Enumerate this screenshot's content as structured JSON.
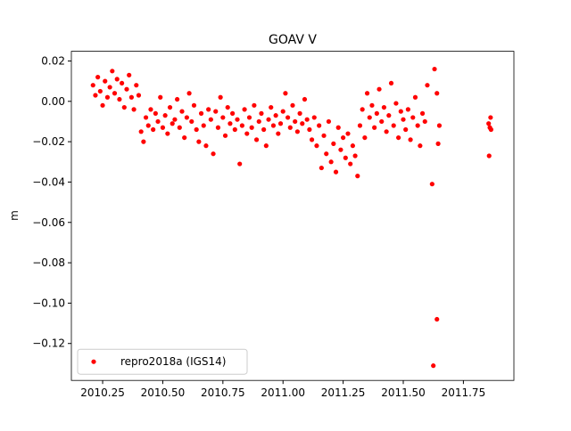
{
  "chart_data": {
    "type": "scatter",
    "title": "GOAV V",
    "y_label": "m",
    "xlim": [
      2010.12,
      2011.96
    ],
    "ylim": [
      -0.1383,
      0.0248
    ],
    "xticks": [
      {
        "value": 2010.25,
        "label": "2010.25"
      },
      {
        "value": 2010.5,
        "label": "2010.50"
      },
      {
        "value": 2010.75,
        "label": "2010.75"
      },
      {
        "value": 2011.0,
        "label": "2011.00"
      },
      {
        "value": 2011.25,
        "label": "2011.25"
      },
      {
        "value": 2011.5,
        "label": "2011.50"
      },
      {
        "value": 2011.75,
        "label": "2011.75"
      }
    ],
    "yticks": [
      {
        "value": 0.02,
        "label": "0.02"
      },
      {
        "value": 0.0,
        "label": "0.00"
      },
      {
        "value": -0.02,
        "label": "−0.02"
      },
      {
        "value": -0.04,
        "label": "−0.04"
      },
      {
        "value": -0.06,
        "label": "−0.06"
      },
      {
        "value": -0.08,
        "label": "−0.08"
      },
      {
        "value": -0.1,
        "label": "−0.10"
      },
      {
        "value": -0.12,
        "label": "−0.12"
      }
    ],
    "legend": "lower left",
    "series": [
      {
        "name": "repro2018a (IGS14)",
        "color": "#ff0000",
        "x": [
          2010.21,
          2010.22,
          2010.23,
          2010.24,
          2010.25,
          2010.26,
          2010.27,
          2010.28,
          2010.29,
          2010.3,
          2010.31,
          2010.32,
          2010.33,
          2010.34,
          2010.35,
          2010.36,
          2010.37,
          2010.38,
          2010.39,
          2010.4,
          2010.41,
          2010.42,
          2010.43,
          2010.44,
          2010.45,
          2010.46,
          2010.47,
          2010.48,
          2010.49,
          2010.5,
          2010.51,
          2010.52,
          2010.53,
          2010.54,
          2010.55,
          2010.56,
          2010.57,
          2010.58,
          2010.59,
          2010.6,
          2010.61,
          2010.62,
          2010.63,
          2010.64,
          2010.65,
          2010.66,
          2010.67,
          2010.68,
          2010.69,
          2010.7,
          2010.71,
          2010.72,
          2010.73,
          2010.74,
          2010.75,
          2010.76,
          2010.77,
          2010.78,
          2010.79,
          2010.8,
          2010.81,
          2010.82,
          2010.83,
          2010.84,
          2010.85,
          2010.86,
          2010.87,
          2010.88,
          2010.89,
          2010.9,
          2010.91,
          2010.92,
          2010.93,
          2010.94,
          2010.95,
          2010.96,
          2010.97,
          2010.98,
          2010.99,
          2011.0,
          2011.01,
          2011.02,
          2011.03,
          2011.04,
          2011.05,
          2011.06,
          2011.07,
          2011.08,
          2011.09,
          2011.1,
          2011.11,
          2011.12,
          2011.13,
          2011.14,
          2011.15,
          2011.16,
          2011.17,
          2011.18,
          2011.19,
          2011.2,
          2011.21,
          2011.22,
          2011.23,
          2011.24,
          2011.25,
          2011.26,
          2011.27,
          2011.28,
          2011.29,
          2011.3,
          2011.31,
          2011.32,
          2011.33,
          2011.34,
          2011.35,
          2011.36,
          2011.37,
          2011.38,
          2011.39,
          2011.4,
          2011.41,
          2011.42,
          2011.43,
          2011.44,
          2011.45,
          2011.46,
          2011.47,
          2011.48,
          2011.49,
          2011.5,
          2011.51,
          2011.52,
          2011.53,
          2011.54,
          2011.55,
          2011.56,
          2011.57,
          2011.58,
          2011.59,
          2011.6,
          2011.62,
          2011.625,
          2011.63,
          2011.64,
          2011.64,
          2011.645,
          2011.65,
          2011.855,
          2011.857,
          2011.86,
          2011.863,
          2011.865
        ],
        "values": [
          0.008,
          0.003,
          0.012,
          0.005,
          -0.002,
          0.01,
          0.002,
          0.007,
          0.015,
          0.004,
          0.011,
          0.001,
          0.009,
          -0.003,
          0.006,
          0.013,
          0.002,
          -0.004,
          0.008,
          0.003,
          -0.015,
          -0.02,
          -0.008,
          -0.012,
          -0.004,
          -0.014,
          -0.006,
          -0.01,
          0.002,
          -0.013,
          -0.007,
          -0.016,
          -0.003,
          -0.011,
          -0.009,
          0.001,
          -0.013,
          -0.005,
          -0.018,
          -0.008,
          0.004,
          -0.01,
          -0.002,
          -0.014,
          -0.02,
          -0.006,
          -0.012,
          -0.022,
          -0.004,
          -0.009,
          -0.026,
          -0.005,
          -0.013,
          0.002,
          -0.008,
          -0.017,
          -0.003,
          -0.011,
          -0.006,
          -0.014,
          -0.009,
          -0.031,
          -0.012,
          -0.004,
          -0.016,
          -0.008,
          -0.013,
          -0.002,
          -0.019,
          -0.01,
          -0.006,
          -0.014,
          -0.022,
          -0.009,
          -0.003,
          -0.012,
          -0.007,
          -0.016,
          -0.011,
          -0.005,
          0.004,
          -0.008,
          -0.013,
          -0.002,
          -0.01,
          -0.015,
          -0.006,
          -0.011,
          0.001,
          -0.009,
          -0.014,
          -0.019,
          -0.008,
          -0.022,
          -0.012,
          -0.033,
          -0.017,
          -0.026,
          -0.01,
          -0.03,
          -0.021,
          -0.035,
          -0.013,
          -0.024,
          -0.018,
          -0.028,
          -0.016,
          -0.031,
          -0.022,
          -0.027,
          -0.037,
          -0.012,
          -0.004,
          -0.018,
          0.004,
          -0.008,
          -0.002,
          -0.013,
          -0.006,
          0.006,
          -0.01,
          -0.003,
          -0.015,
          -0.007,
          0.009,
          -0.012,
          -0.001,
          -0.018,
          -0.005,
          -0.009,
          -0.014,
          -0.004,
          -0.019,
          -0.008,
          0.002,
          -0.012,
          -0.022,
          -0.006,
          -0.01,
          0.008,
          -0.041,
          -0.131,
          0.016,
          -0.108,
          0.004,
          -0.021,
          -0.012,
          -0.011,
          -0.027,
          -0.013,
          -0.008,
          -0.014
        ]
      }
    ]
  }
}
